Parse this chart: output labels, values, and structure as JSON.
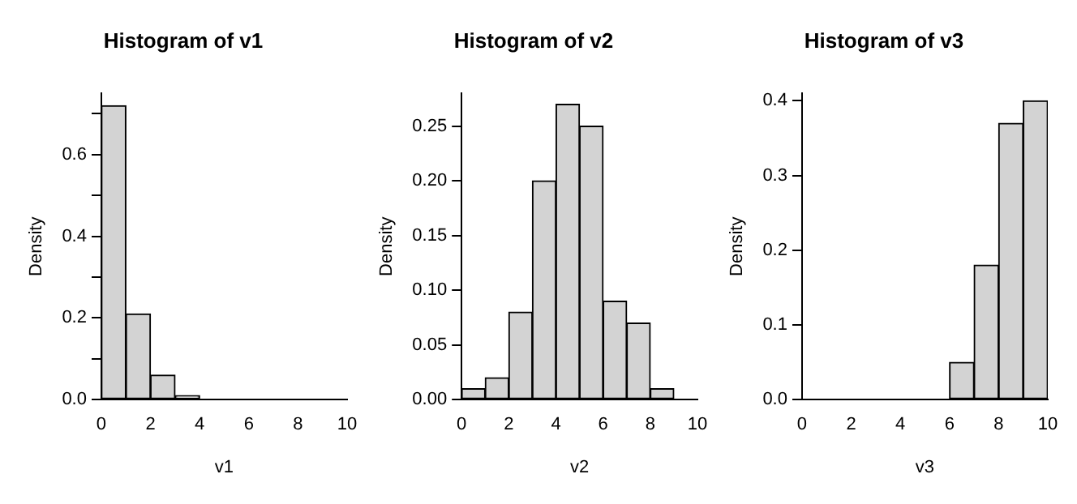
{
  "chart_data": [
    {
      "type": "histogram",
      "title": "Histogram of v1",
      "xlabel": "v1",
      "ylabel": "Density",
      "bins": [
        0,
        1,
        2,
        3,
        4,
        5,
        6,
        7,
        8,
        9,
        10
      ],
      "values": [
        0.72,
        0.21,
        0.06,
        0.01,
        0,
        0,
        0,
        0,
        0,
        0
      ],
      "color": "#d3d3d3",
      "xlim": [
        0,
        10
      ],
      "xticks": [
        0,
        2,
        4,
        6,
        8,
        10
      ],
      "ylim": [
        0,
        0.75
      ],
      "yticks": [
        "0.0",
        {
          "value": 0.1,
          "label": null
        },
        0.2,
        {
          "value": 0.3,
          "label": null
        },
        0.4,
        {
          "value": 0.5,
          "label": null
        },
        0.6,
        {
          "value": 0.7,
          "label": null
        }
      ],
      "grid": false
    },
    {
      "type": "histogram",
      "title": "Histogram of v2",
      "xlabel": "v2",
      "ylabel": "Density",
      "bins": [
        0,
        1,
        2,
        3,
        4,
        5,
        6,
        7,
        8,
        9,
        10
      ],
      "values": [
        0.01,
        0.02,
        0.08,
        0.2,
        0.27,
        0.25,
        0.09,
        0.07,
        0.01,
        0
      ],
      "color": "#d3d3d3",
      "xlim": [
        0,
        10
      ],
      "xticks": [
        0,
        2,
        4,
        6,
        8,
        10
      ],
      "ylim": [
        0,
        0.28
      ],
      "yticks": [
        {
          "value": 0,
          "label": "0.00"
        },
        0.05,
        {
          "value": 0.1,
          "label": "0.10"
        },
        0.15,
        {
          "value": 0.2,
          "label": "0.20"
        },
        0.25
      ],
      "grid": false
    },
    {
      "type": "histogram",
      "title": "Histogram of v3",
      "xlabel": "v3",
      "ylabel": "Density",
      "bins": [
        0,
        1,
        2,
        3,
        4,
        5,
        6,
        7,
        8,
        9,
        10
      ],
      "values": [
        0,
        0,
        0,
        0,
        0,
        0,
        0.05,
        0.18,
        0.37,
        0.4
      ],
      "color": "#d3d3d3",
      "xlim": [
        0,
        10
      ],
      "xticks": [
        0,
        2,
        4,
        6,
        8,
        10
      ],
      "ylim": [
        0,
        0.41
      ],
      "yticks": [
        {
          "value": 0,
          "label": "0.0"
        },
        0.1,
        0.2,
        0.3,
        0.4
      ],
      "grid": false
    }
  ]
}
